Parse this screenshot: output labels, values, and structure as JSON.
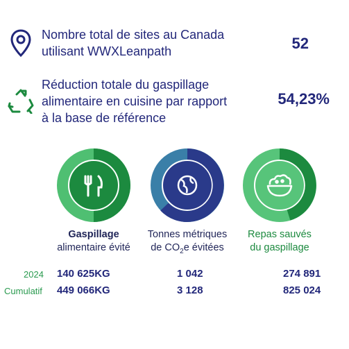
{
  "stats": [
    {
      "text_line1": "Nombre total de sites au Canada",
      "text_line2": "utilisant WWXLeanpath",
      "value": "52",
      "icon": "location-pin-icon"
    },
    {
      "text_line1": "Réduction totale du gaspillage",
      "text_line2": "alimentaire en cuisine par rapport",
      "text_line3": "à la base de référence",
      "value": "54,23%",
      "icon": "recycle-icon"
    }
  ],
  "metrics": [
    {
      "caption_line1": "Gaspillage",
      "caption_line2": "alimentaire évité",
      "icon": "fork-knife-icon",
      "colors": [
        "#1c8a3f",
        "#4fbf72"
      ],
      "val_2024": "140 625KG",
      "val_cumul": "449 066KG"
    },
    {
      "caption_line1": "Tonnes métriques",
      "caption_line2_pre": "de CO",
      "caption_line2_sub": "2",
      "caption_line2_post": "e évitées",
      "icon": "globe-icon",
      "colors": [
        "#2a3a8a",
        "#3a7fa8"
      ],
      "val_2024": "1 042",
      "val_cumul": "3 128"
    },
    {
      "caption_line1": "Repas sauvés",
      "caption_line2": "du gaspillage",
      "icon": "salad-bowl-icon",
      "colors": [
        "#1c8a3f",
        "#57c47a"
      ],
      "val_2024": "274 891",
      "val_cumul": "825 024"
    }
  ],
  "row_labels": {
    "year": "2024",
    "cumulative": "Cumulatif"
  }
}
